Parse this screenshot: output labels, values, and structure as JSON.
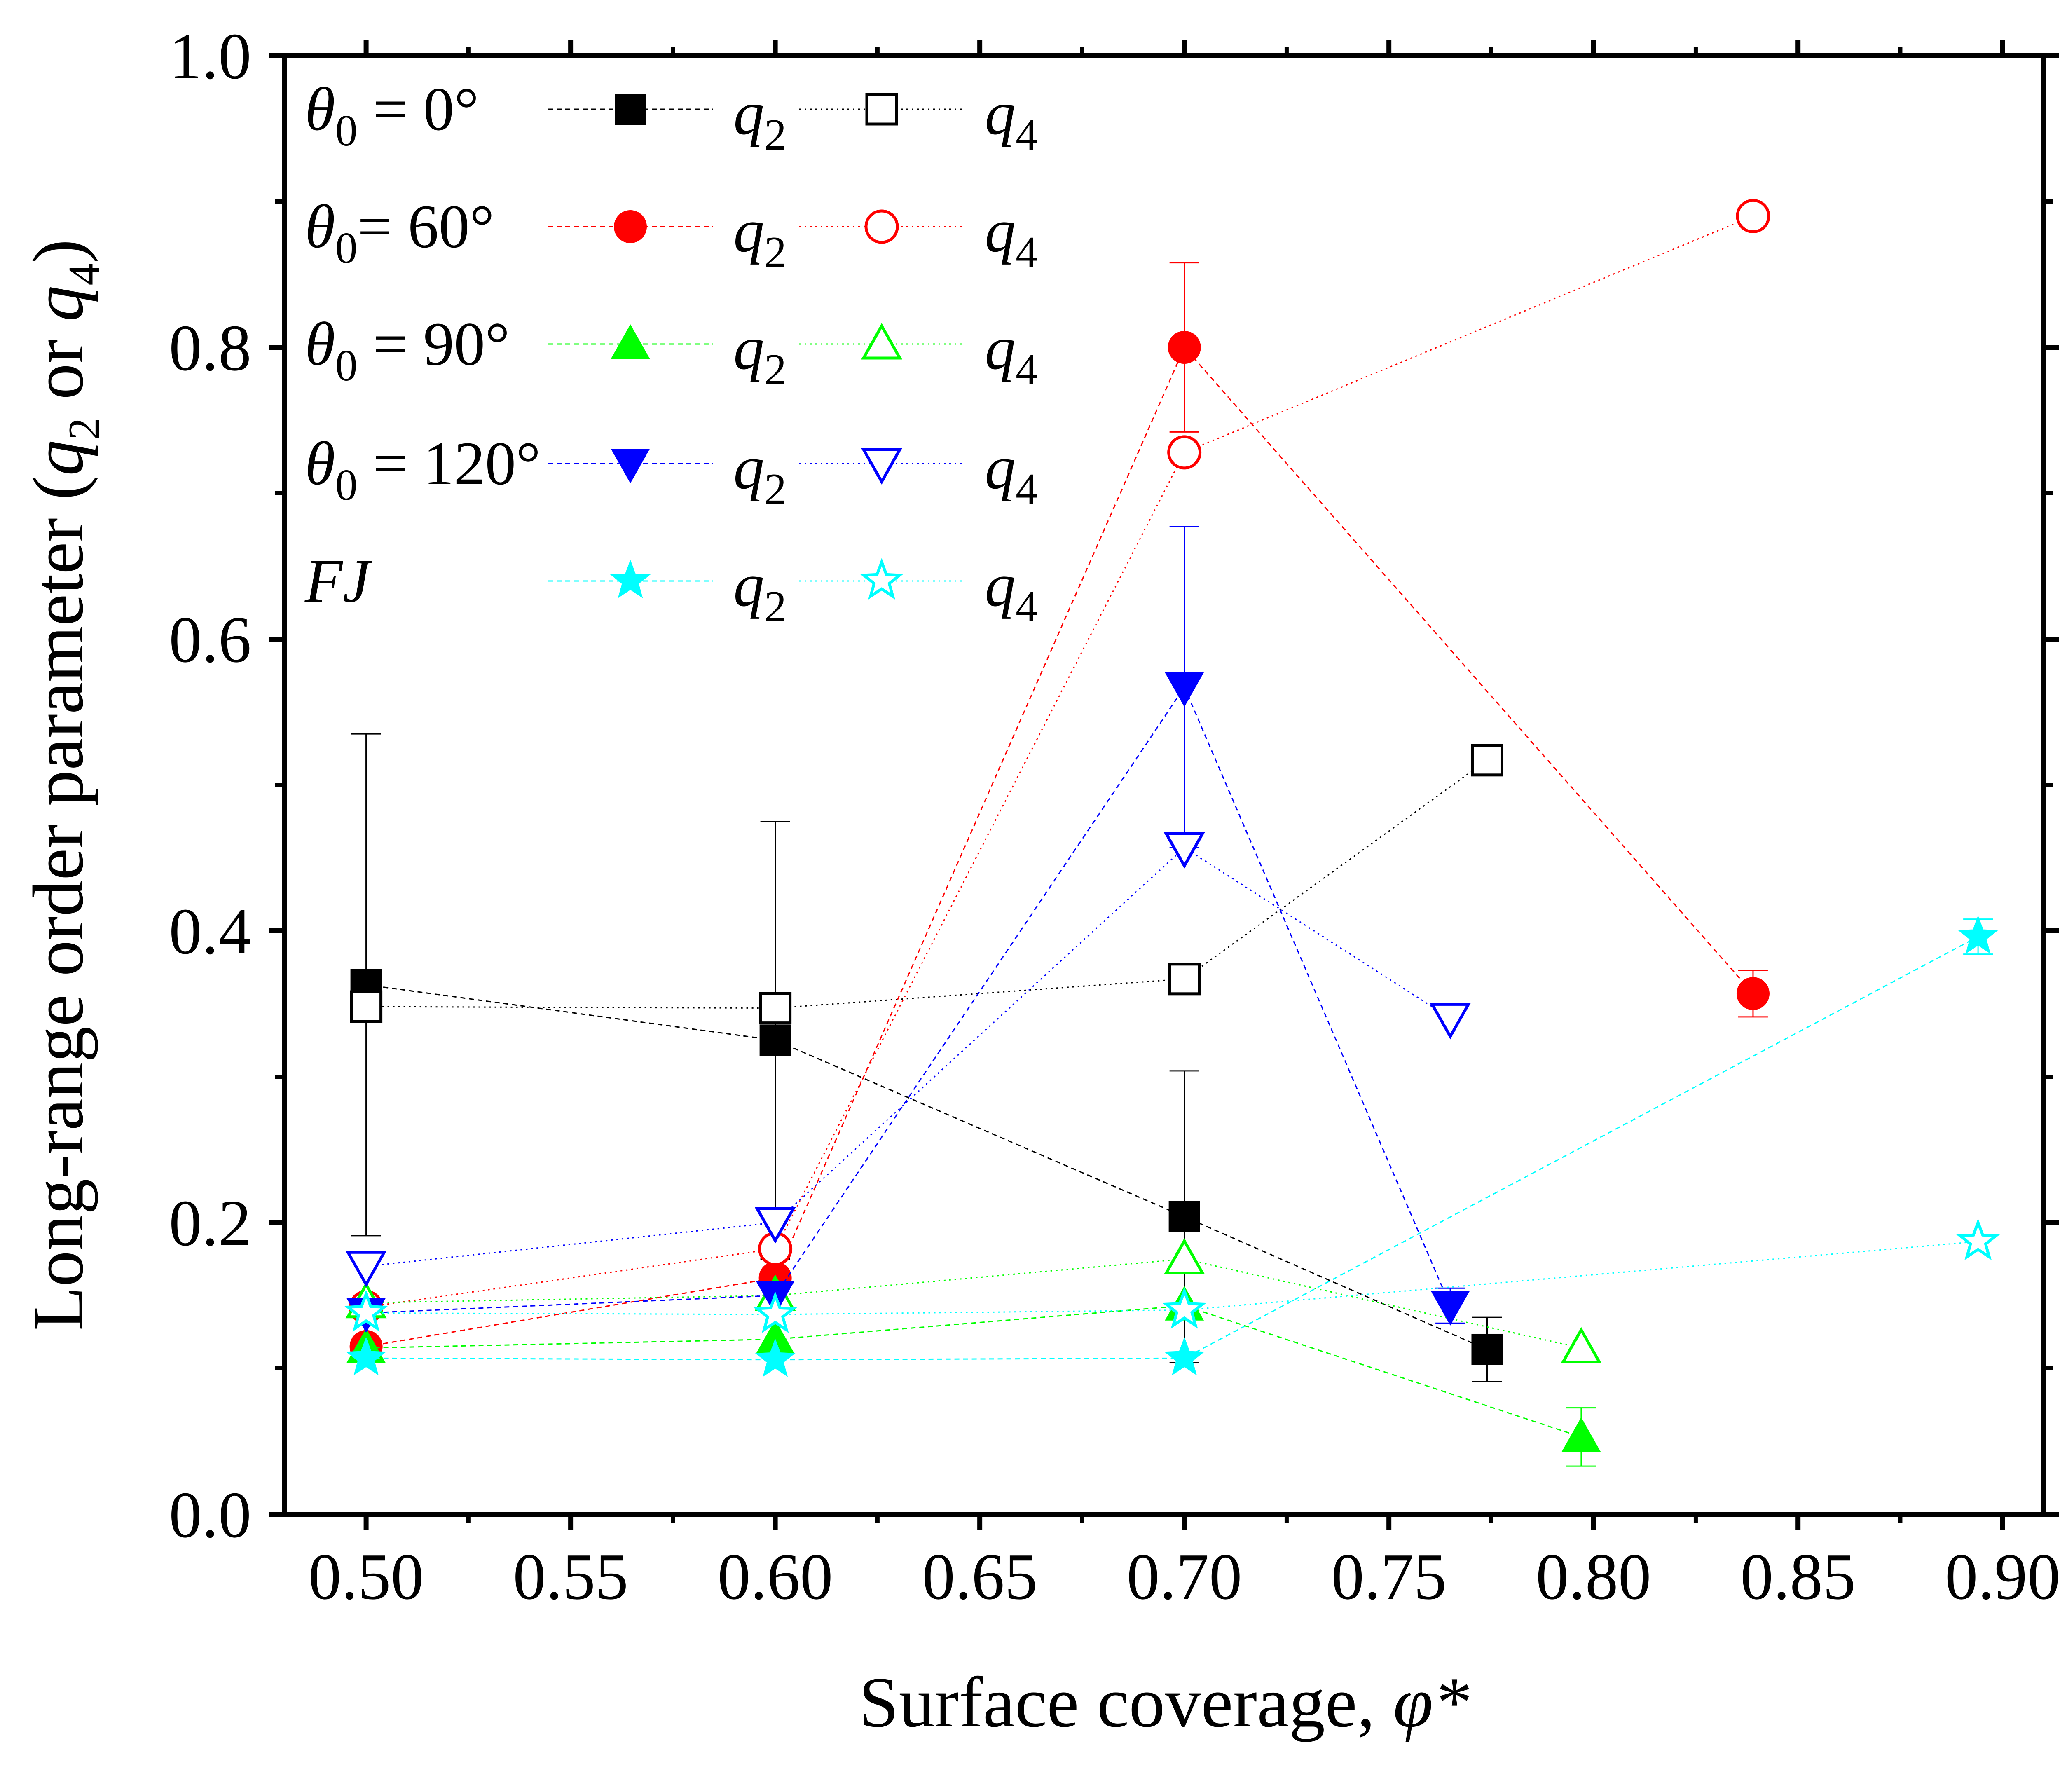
{
  "chart_data": {
    "type": "scatter",
    "xlabel": {
      "main": "Surface coverage, ",
      "symbol": "φ*"
    },
    "ylabel": {
      "main": "Long-range order parameter (",
      "q": "q",
      "s2": "2",
      "or": " or ",
      "s4": "4",
      "close": ")"
    },
    "xlim": [
      0.48,
      0.91
    ],
    "ylim": [
      0.0,
      1.0
    ],
    "xticks": [
      "0.50",
      "0.55",
      "0.60",
      "0.65",
      "0.70",
      "0.75",
      "0.80",
      "0.85",
      "0.90"
    ],
    "xtick_values": [
      0.5,
      0.55,
      0.6,
      0.65,
      0.7,
      0.75,
      0.8,
      0.85,
      0.9
    ],
    "yticks": [
      "0.0",
      "0.2",
      "0.4",
      "0.6",
      "0.8",
      "1.0"
    ],
    "ytick_values": [
      0.0,
      0.2,
      0.4,
      0.6,
      0.8,
      1.0
    ],
    "legend": {
      "placement": "top-left",
      "rows": [
        {
          "theta": "θ",
          "sub": "0",
          "rest": " = 0°",
          "italic_label": ""
        },
        {
          "theta": "θ",
          "sub": "0",
          "rest": "= 60°",
          "italic_label": ""
        },
        {
          "theta": "θ",
          "sub": "0",
          "rest": " = 90°",
          "italic_label": ""
        },
        {
          "theta": "θ",
          "sub": "0",
          "rest": " = 120°",
          "italic_label": ""
        },
        {
          "theta": "",
          "sub": "",
          "rest": "",
          "italic_label": "FJ"
        }
      ],
      "q_letter": "q",
      "q2_sub": "2",
      "q4_sub": "4"
    },
    "series": [
      {
        "group": 0,
        "param": "q2",
        "color": "#000000",
        "marker": "square",
        "filled": true,
        "line_style": "dashed",
        "x": [
          0.5,
          0.6,
          0.7,
          0.774
        ],
        "y": [
          0.363,
          0.325,
          0.204,
          0.113
        ],
        "err": [
          0.172,
          0.15,
          0.1,
          0.022
        ]
      },
      {
        "group": 0,
        "param": "q4",
        "color": "#000000",
        "marker": "square",
        "filled": false,
        "line_style": "dotted",
        "x": [
          0.5,
          0.6,
          0.7,
          0.774
        ],
        "y": [
          0.348,
          0.347,
          0.367,
          0.517
        ],
        "err": null
      },
      {
        "group": 1,
        "param": "q2",
        "color": "#ff0000",
        "marker": "circle",
        "filled": true,
        "line_style": "dashed",
        "x": [
          0.5,
          0.6,
          0.7,
          0.839
        ],
        "y": [
          0.115,
          0.162,
          0.8,
          0.357
        ],
        "err": [
          0.0,
          0.0,
          0.058,
          0.016
        ]
      },
      {
        "group": 1,
        "param": "q4",
        "color": "#ff0000",
        "marker": "circle",
        "filled": false,
        "line_style": "dotted",
        "x": [
          0.5,
          0.6,
          0.7,
          0.839
        ],
        "y": [
          0.142,
          0.182,
          0.728,
          0.89
        ],
        "err": null
      },
      {
        "group": 2,
        "param": "q2",
        "color": "#00ff00",
        "marker": "triangle-up",
        "filled": true,
        "line_style": "dashed",
        "x": [
          0.5,
          0.6,
          0.7,
          0.797
        ],
        "y": [
          0.114,
          0.12,
          0.143,
          0.053
        ],
        "err": [
          0.0,
          0.0,
          0.0,
          0.02
        ]
      },
      {
        "group": 2,
        "param": "q4",
        "color": "#00ff00",
        "marker": "triangle-up",
        "filled": false,
        "line_style": "dotted",
        "x": [
          0.5,
          0.6,
          0.7,
          0.797
        ],
        "y": [
          0.145,
          0.15,
          0.175,
          0.114
        ],
        "err": null
      },
      {
        "group": 3,
        "param": "q2",
        "color": "#0000ff",
        "marker": "triangle-down",
        "filled": true,
        "line_style": "dashed",
        "x": [
          0.5,
          0.6,
          0.7,
          0.765
        ],
        "y": [
          0.138,
          0.15,
          0.567,
          0.143
        ],
        "err": [
          0.0,
          0.0,
          0.11,
          0.012
        ]
      },
      {
        "group": 3,
        "param": "q4",
        "color": "#0000ff",
        "marker": "triangle-down",
        "filled": false,
        "line_style": "dotted",
        "x": [
          0.5,
          0.6,
          0.7,
          0.765
        ],
        "y": [
          0.17,
          0.2,
          0.457,
          0.34
        ],
        "err": null
      },
      {
        "group": 4,
        "param": "q2",
        "color": "#00ffff",
        "marker": "star",
        "filled": true,
        "line_style": "dashed",
        "x": [
          0.5,
          0.6,
          0.7,
          0.894
        ],
        "y": [
          0.107,
          0.106,
          0.107,
          0.396
        ],
        "err": [
          0.0,
          0.0,
          0.0,
          0.012
        ]
      },
      {
        "group": 4,
        "param": "q4",
        "color": "#00ffff",
        "marker": "star",
        "filled": false,
        "line_style": "dotted",
        "x": [
          0.5,
          0.6,
          0.7,
          0.894
        ],
        "y": [
          0.138,
          0.137,
          0.14,
          0.187
        ],
        "err": null
      }
    ],
    "grid": false
  }
}
